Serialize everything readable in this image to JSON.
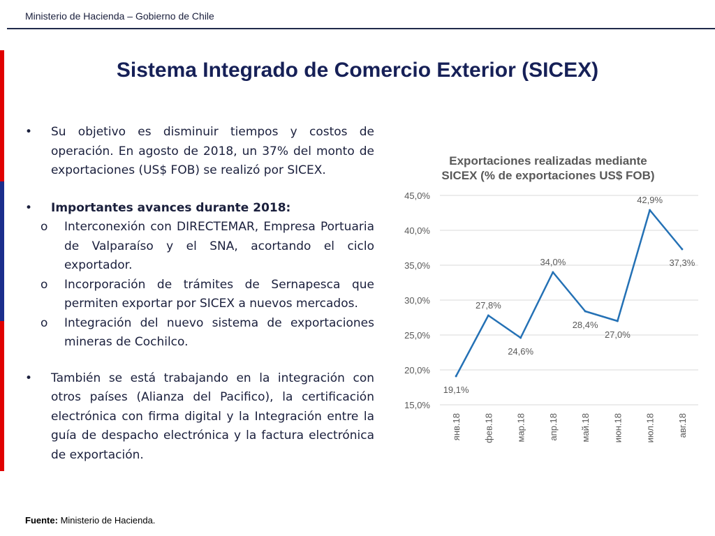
{
  "header": {
    "org": "Ministerio de Hacienda – Gobierno de Chile"
  },
  "title": "Sistema Integrado de Comercio Exterior (SICEX)",
  "bullets": {
    "b1": "Su objetivo es disminuir tiempos y costos de operación. En agosto de 2018, un 37% del monto de exportaciones (US$ FOB) se realizó por SICEX.",
    "b2": "Importantes avances durante 2018:",
    "sub1": "Interconexión con DIRECTEMAR, Empresa Portuaria de Valparaíso y el SNA, acortando el ciclo exportador.",
    "sub2": "Incorporación de trámites de Sernapesca que permiten exportar por SICEX a nuevos mercados.",
    "sub3": "Integración del nuevo sistema de exportaciones mineras de Cochilco.",
    "b3": "También se está trabajando en la integración con otros países (Alianza del Pacifico), la certificación electrónica con firma digital y la Integración entre la guía de despacho electrónica y la factura electrónica de exportación."
  },
  "markers": {
    "bullet": "•",
    "sub": "o"
  },
  "footer": {
    "label": "Fuente:",
    "text": " Ministerio de Hacienda."
  },
  "colors": {
    "line": "#2471b5",
    "title": "#162057",
    "accent_red": "#e00000",
    "accent_blue": "#1b2e8c"
  },
  "chart_data": {
    "type": "line",
    "title": "Exportaciones realizadas mediante SICEX (% de exportaciones US$ FOB)",
    "title_lines": [
      "Exportaciones realizadas mediante",
      "SICEX (% de exportaciones US$ FOB)"
    ],
    "categories": [
      "янв.18",
      "фев.18",
      "мар.18",
      "апр.18",
      "май.18",
      "июн.18",
      "июл.18",
      "авг.18"
    ],
    "values": [
      19.1,
      27.8,
      24.6,
      34.0,
      28.4,
      27.0,
      42.9,
      37.3
    ],
    "data_labels": [
      "19,1%",
      "27,8%",
      "24,6%",
      "34,0%",
      "28,4%",
      "27,0%",
      "42,9%",
      "37,3%"
    ],
    "label_positions": [
      "below",
      "above",
      "below",
      "above",
      "below",
      "below",
      "above",
      "below"
    ],
    "ylim": [
      15,
      45
    ],
    "yticks": [
      15,
      20,
      25,
      30,
      35,
      40,
      45
    ],
    "ytick_labels": [
      "15,0%",
      "20,0%",
      "25,0%",
      "30,0%",
      "35,0%",
      "40,0%",
      "45,0%"
    ],
    "grid": true,
    "xlabel": "",
    "ylabel": ""
  }
}
